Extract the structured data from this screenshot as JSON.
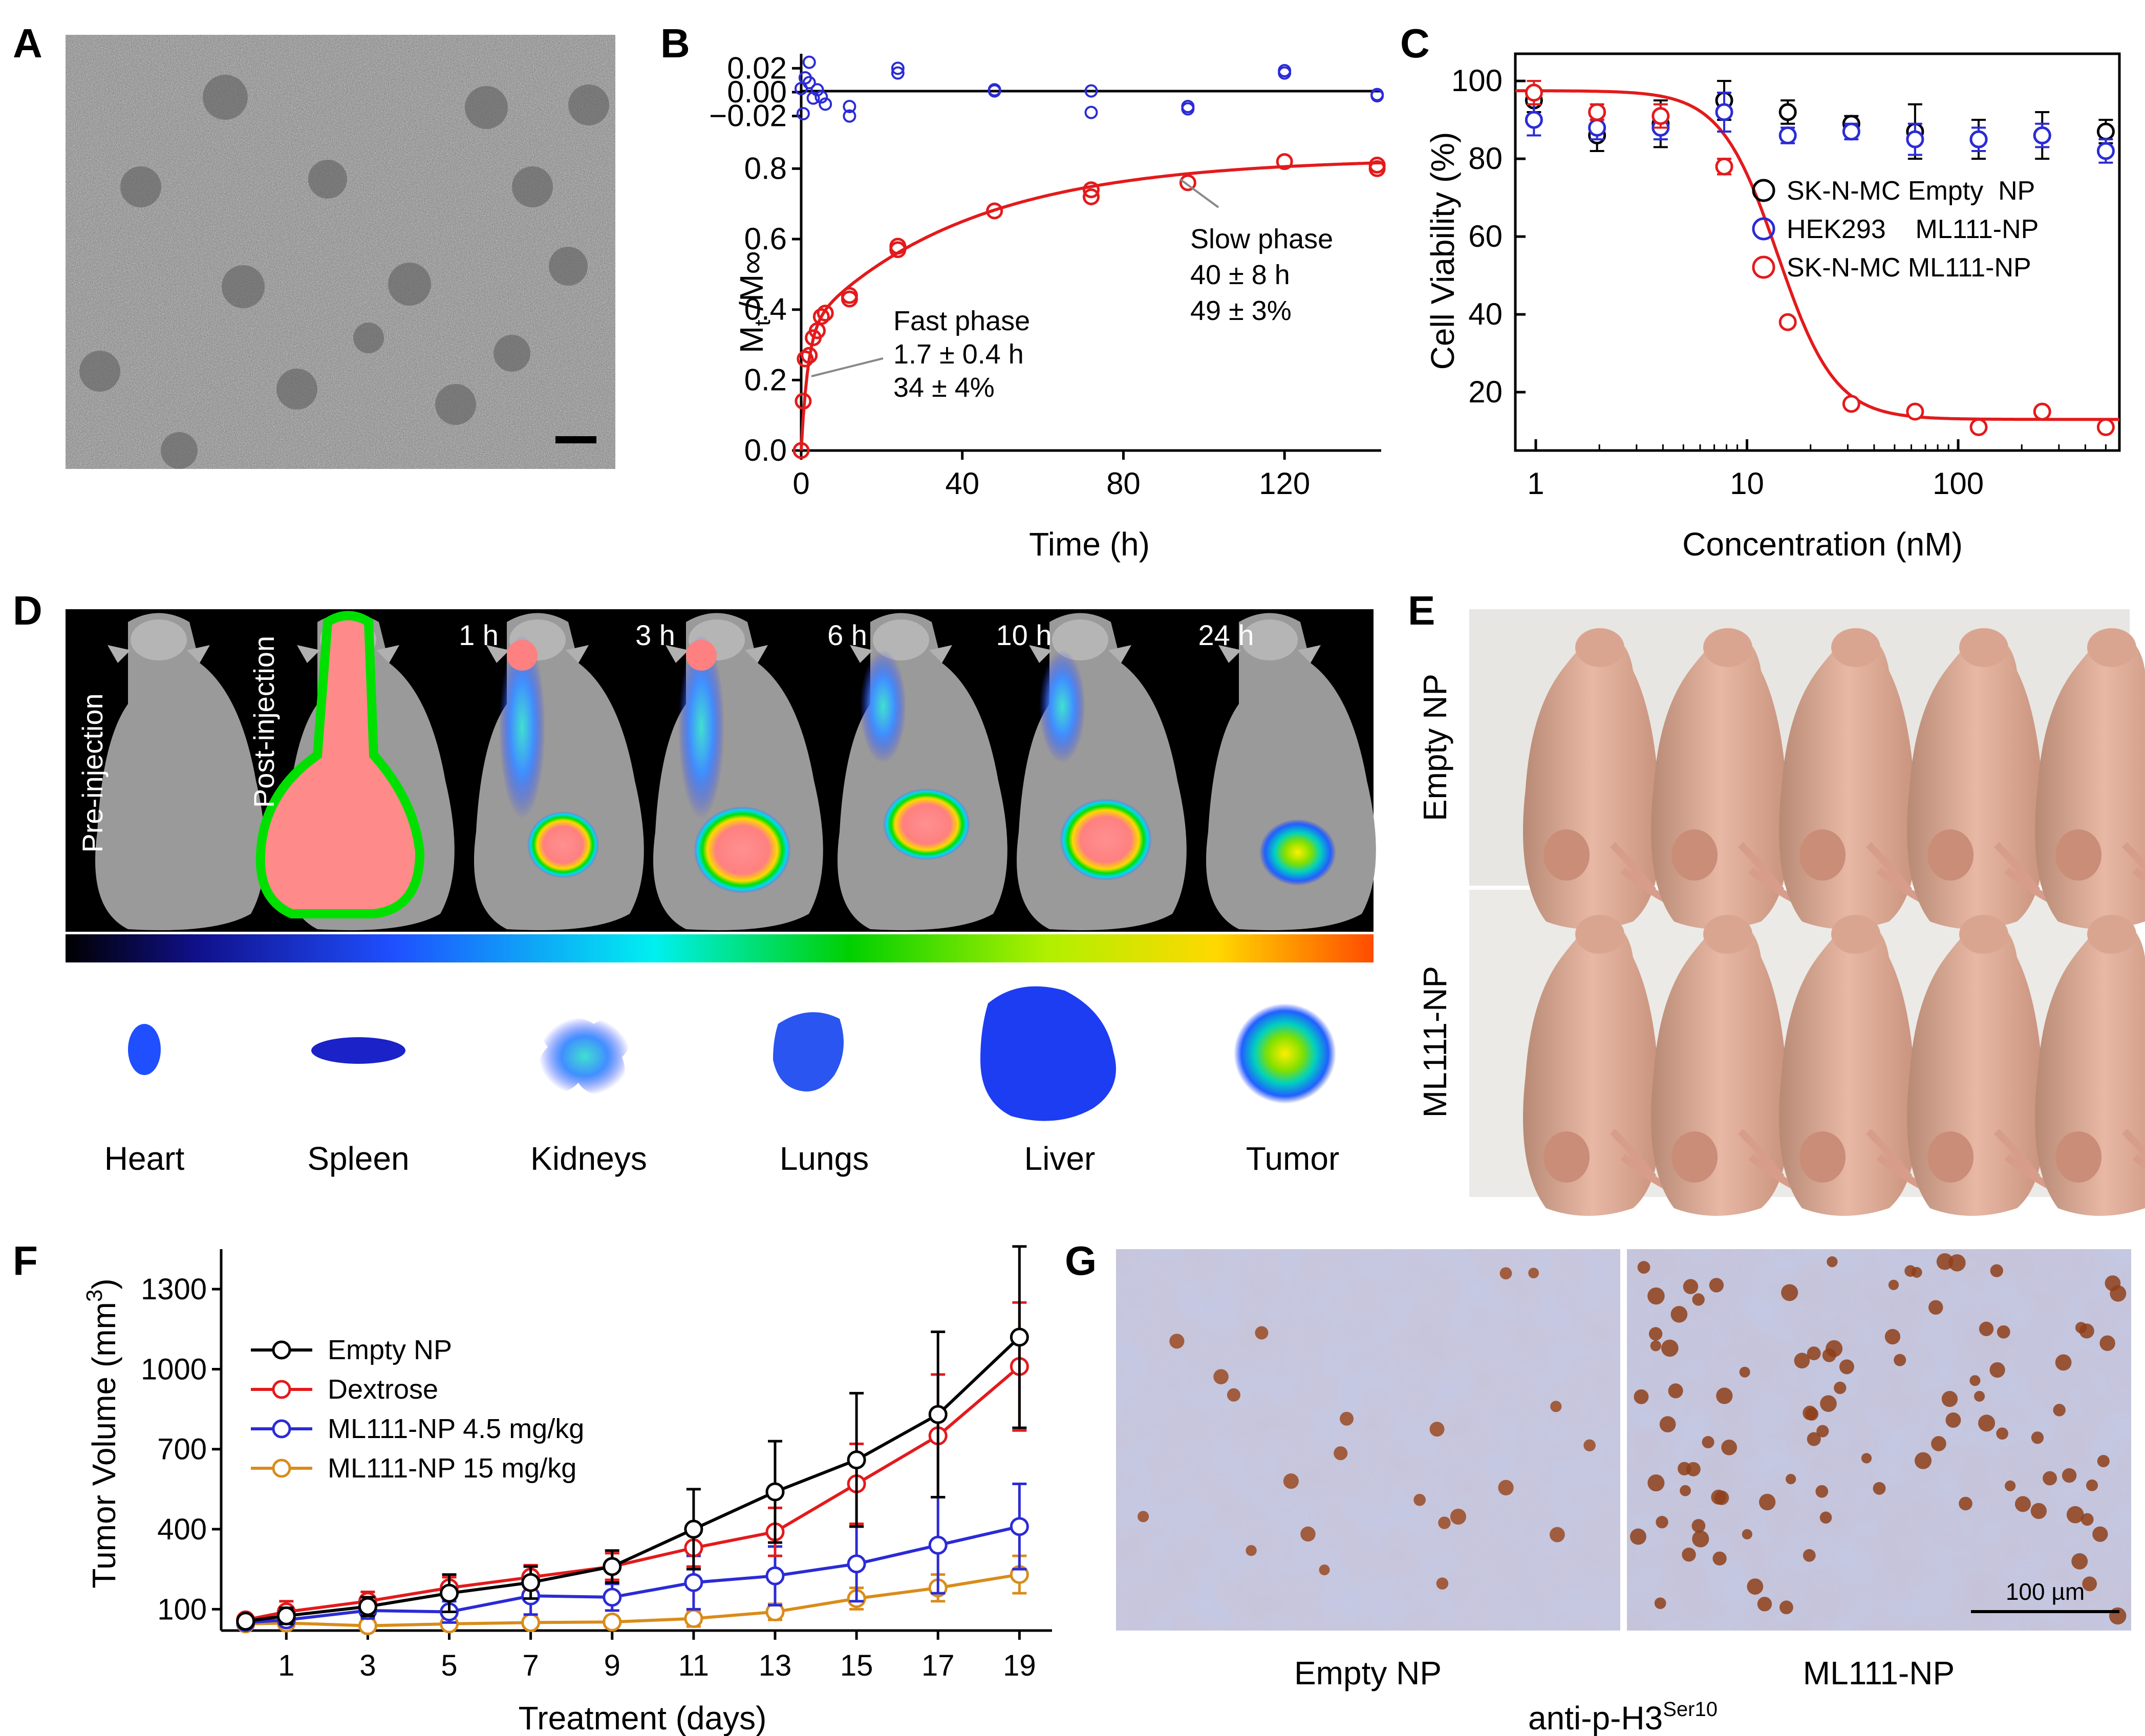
{
  "colors": {
    "black": "#000000",
    "red": "#e31a1c",
    "blue": "#2b2bd6",
    "orange": "#d98c1a"
  },
  "panels": {
    "A": {
      "letter": "A",
      "scale_bar_present": true
    },
    "B": {
      "letter": "B",
      "ylabel_main": "M",
      "ylabel_sub": "t",
      "ylabel_tail": " /M∞",
      "annotations": {
        "slow_title": "Slow phase",
        "slow_time": "40 ± 8 h",
        "slow_pct": "49 ± 3%",
        "fast_title": "Fast phase",
        "fast_time": "1.7 ± 0.4 h",
        "fast_pct": "34 ± 4%"
      }
    },
    "C": {
      "letter": "C",
      "legend": [
        {
          "label": "SK-N-MC Empty  NP",
          "color": "#000000"
        },
        {
          "label": "HEK293    ML111-NP",
          "color": "#2b2bd6"
        },
        {
          "label": "SK-N-MC ML111-NP",
          "color": "#e31a1c"
        }
      ]
    },
    "D": {
      "letter": "D",
      "timepoints": [
        "Pre-injection",
        "Post-injection",
        "1 h",
        "3 h",
        "6 h",
        "10 h",
        "24 h"
      ],
      "organs": [
        "Heart",
        "Spleen",
        "Kidneys",
        "Lungs",
        "Liver",
        "Tumor"
      ]
    },
    "E": {
      "letter": "E",
      "groups": [
        "Empty NP",
        "ML111-NP"
      ]
    },
    "F": {
      "letter": "F",
      "ylabel": "Tumor Volume (mm",
      "ylabel_sup": "3",
      "ylabel_close": ")"
    },
    "G": {
      "letter": "G",
      "left_label": "Empty NP",
      "right_label": "ML111-NP",
      "scale_label": "100 µm",
      "stain_main": "anti-p-H3",
      "stain_sup": "Ser10"
    }
  },
  "chart_data": [
    {
      "id": "B",
      "type": "scatter",
      "title": "",
      "xlabel": "Time (h)",
      "ylabel": "Mt /M∞",
      "xlim": [
        0,
        144
      ],
      "ylim": [
        0,
        0.85
      ],
      "xticks": [
        0,
        40,
        80,
        120
      ],
      "yticks": [
        0.0,
        0.2,
        0.4,
        0.6,
        0.8
      ],
      "xtick_labels": [
        "0",
        "40",
        "80",
        "120"
      ],
      "ytick_labels": [
        "0.0",
        "0.2",
        "0.4",
        "0.6",
        "0.8"
      ],
      "series": [
        {
          "name": "Release data",
          "color": "#e31a1c",
          "x": [
            0,
            0.5,
            1,
            2,
            3,
            4,
            5,
            6,
            12,
            12,
            24,
            24,
            48,
            72,
            72,
            96,
            120,
            143,
            143
          ],
          "y": [
            0.0,
            0.14,
            0.26,
            0.27,
            0.32,
            0.34,
            0.38,
            0.39,
            0.43,
            0.44,
            0.57,
            0.58,
            0.68,
            0.72,
            0.74,
            0.76,
            0.82,
            0.8,
            0.81
          ]
        },
        {
          "name": "Biexponential fit",
          "color": "#e31a1c",
          "kind": "line",
          "fit": {
            "fast_fraction": 0.34,
            "fast_tau_h": 1.7,
            "slow_fraction": 0.49,
            "slow_tau_h": 40
          }
        }
      ],
      "residuals": {
        "ylim": [
          -0.03,
          0.03
        ],
        "yticks": [
          0.02,
          0.0,
          -0.02
        ],
        "ytick_labels": [
          "0.02",
          "0.00",
          "−0.02"
        ],
        "color": "#2b2bd6",
        "x": [
          0,
          0.5,
          1,
          2,
          2,
          3,
          4,
          5,
          6,
          12,
          12,
          24,
          24,
          48,
          48,
          72,
          72,
          96,
          96,
          120,
          120,
          143,
          143
        ],
        "y": [
          0.003,
          -0.018,
          0.012,
          0.008,
          0.025,
          -0.005,
          0.002,
          -0.004,
          -0.01,
          -0.012,
          -0.02,
          0.016,
          0.02,
          0.002,
          0.001,
          0.001,
          -0.017,
          -0.014,
          -0.012,
          0.018,
          0.016,
          -0.003,
          -0.002
        ]
      }
    },
    {
      "id": "C",
      "type": "scatter",
      "title": "",
      "xlabel": "Concentration (nM)",
      "ylabel": "Cell Viability (%)",
      "xscale": "log",
      "xlim": [
        0.8,
        580
      ],
      "ylim": [
        5,
        107
      ],
      "xticks": [
        1,
        10,
        100
      ],
      "yticks": [
        20,
        40,
        60,
        80,
        100
      ],
      "xtick_labels": [
        "1",
        "10",
        "100"
      ],
      "ytick_labels": [
        "20",
        "40",
        "60",
        "80",
        "100"
      ],
      "x": [
        0.98,
        1.95,
        3.9,
        7.8,
        15.6,
        31.2,
        62.5,
        125,
        250,
        500
      ],
      "series": [
        {
          "name": "SK-N-MC Empty NP",
          "color": "#000000",
          "values": [
            95,
            86,
            89,
            95,
            92,
            89,
            87,
            85,
            86,
            87
          ],
          "errors": [
            3,
            4,
            6,
            5,
            3,
            2,
            7,
            5,
            6,
            3
          ]
        },
        {
          "name": "HEK293 ML111-NP",
          "color": "#2b2bd6",
          "values": [
            90,
            88,
            88,
            92,
            86,
            87,
            85,
            85,
            86,
            82
          ],
          "errors": [
            4,
            3,
            3,
            5,
            2,
            2,
            4,
            3,
            3,
            3
          ]
        },
        {
          "name": "SK-N-MC ML111-NP",
          "color": "#e31a1c",
          "values": [
            97,
            92,
            91,
            78,
            38,
            17,
            15,
            11,
            15,
            11
          ],
          "errors": [
            3,
            2,
            3,
            2,
            1,
            1,
            1,
            1,
            1,
            1
          ],
          "fit": {
            "top": 97.5,
            "bottom": 13,
            "ic50": 14,
            "hill": 3.2
          }
        }
      ]
    },
    {
      "id": "F",
      "type": "line",
      "title": "",
      "xlabel": "Treatment (days)",
      "ylabel": "Tumor Volume (mm3)",
      "xlim": [
        -0.6,
        19.8
      ],
      "ylim": [
        20,
        1450
      ],
      "xticks": [
        1,
        3,
        5,
        7,
        9,
        11,
        13,
        15,
        17,
        19
      ],
      "yticks": [
        100,
        400,
        700,
        1000,
        1300
      ],
      "xtick_labels": [
        "1",
        "3",
        "5",
        "7",
        "9",
        "11",
        "13",
        "15",
        "17",
        "19"
      ],
      "ytick_labels": [
        "100",
        "400",
        "700",
        "1000",
        "1300"
      ],
      "x": [
        0,
        1,
        3,
        5,
        7,
        9,
        11,
        13,
        15,
        17,
        19
      ],
      "series": [
        {
          "name": "Empty NP",
          "color": "#000000",
          "values": [
            55,
            75,
            110,
            160,
            200,
            260,
            400,
            540,
            660,
            830,
            1120
          ],
          "errors": [
            15,
            30,
            35,
            70,
            60,
            60,
            150,
            190,
            250,
            310,
            340
          ]
        },
        {
          "name": "Dextrose",
          "color": "#e31a1c",
          "values": [
            60,
            90,
            130,
            180,
            220,
            260,
            330,
            390,
            570,
            750,
            1010
          ],
          "errors": [
            15,
            40,
            35,
            40,
            45,
            50,
            70,
            90,
            150,
            230,
            240
          ]
        },
        {
          "name": "ML111-NP 4.5 mg/kg",
          "color": "#2b2bd6",
          "values": [
            50,
            60,
            95,
            90,
            150,
            145,
            200,
            225,
            270,
            340,
            410
          ],
          "errors": [
            12,
            20,
            30,
            40,
            70,
            50,
            100,
            110,
            140,
            180,
            160
          ]
        },
        {
          "name": "ML111-NP 15 mg/kg",
          "color": "#d98c1a",
          "values": [
            45,
            48,
            38,
            45,
            50,
            52,
            65,
            90,
            140,
            180,
            230
          ],
          "errors": [
            10,
            15,
            12,
            15,
            20,
            20,
            30,
            30,
            40,
            50,
            70
          ]
        }
      ]
    }
  ]
}
